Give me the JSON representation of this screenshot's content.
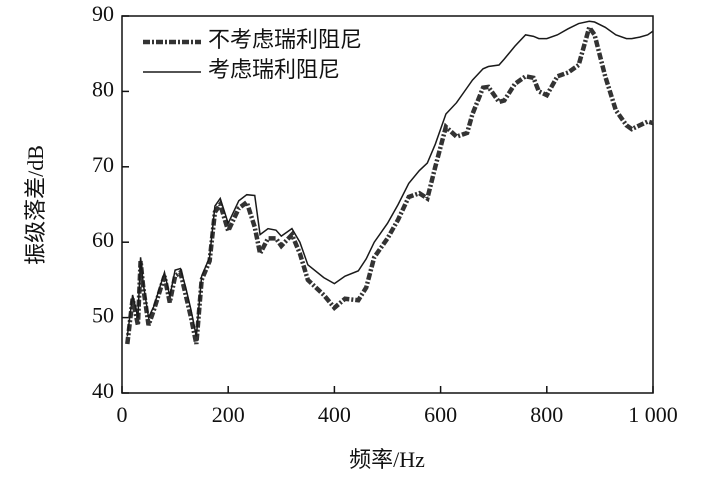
{
  "chart_data": {
    "type": "line",
    "xlabel": "频率/Hz",
    "ylabel": "振级落差/dB",
    "x": [
      10,
      20,
      30,
      35,
      40,
      50,
      60,
      80,
      90,
      100,
      110,
      120,
      130,
      140,
      150,
      165,
      175,
      185,
      200,
      220,
      235,
      250,
      260,
      275,
      290,
      300,
      320,
      335,
      350,
      380,
      400,
      420,
      445,
      460,
      475,
      500,
      520,
      540,
      560,
      575,
      590,
      610,
      630,
      650,
      660,
      680,
      690,
      710,
      720,
      740,
      760,
      775,
      785,
      800,
      820,
      840,
      860,
      880,
      890,
      910,
      930,
      950,
      960,
      975,
      990,
      1000
    ],
    "series": [
      {
        "name": "不考虑瑞利阻尼",
        "color": "#333333",
        "linestyle": "dash-dot",
        "values": [
          46.5,
          52.5,
          49,
          57.5,
          54,
          49,
          51,
          55.5,
          52,
          55.5,
          56,
          53,
          50,
          46.5,
          55,
          57.5,
          64,
          65,
          61.5,
          64.5,
          65.3,
          62,
          58.5,
          60.5,
          60.5,
          59.5,
          61,
          58.5,
          55,
          53,
          51.3,
          52.5,
          52.3,
          54,
          58,
          60.5,
          63,
          66,
          66.5,
          65.8,
          70,
          75.3,
          74,
          74.5,
          77,
          80.5,
          80.6,
          78.6,
          78.8,
          81,
          82,
          81.8,
          80,
          79.5,
          82,
          82.5,
          83.5,
          88.5,
          87.5,
          82,
          77.5,
          75.5,
          75,
          75.5,
          76,
          75.8
        ]
      },
      {
        "name": "考虑瑞利阻尼",
        "color": "#1a1a1a",
        "linestyle": "solid",
        "values": [
          47.5,
          53,
          50,
          58,
          54.5,
          50,
          51.5,
          56,
          52.8,
          56.3,
          56.5,
          54,
          51,
          47.5,
          55.5,
          58,
          64.8,
          65.8,
          62.5,
          65.5,
          66.3,
          66.2,
          61,
          61.8,
          61.6,
          60.8,
          61.8,
          60,
          57,
          55.3,
          54.5,
          55.5,
          56.2,
          57.8,
          60,
          62.5,
          65,
          67.8,
          69.5,
          70.5,
          73,
          77,
          78.5,
          80.5,
          81.5,
          83,
          83.3,
          83.5,
          84.3,
          86,
          87.5,
          87.3,
          87,
          87,
          87.5,
          88.3,
          89,
          89.3,
          89.2,
          88.5,
          87.5,
          87,
          87,
          87.2,
          87.5,
          88
        ]
      }
    ],
    "xlim": [
      0,
      1000
    ],
    "xticks": [
      0,
      200,
      400,
      600,
      800,
      {
        "value": 1000,
        "label": "1 000"
      }
    ],
    "ylim": [
      40,
      90
    ],
    "yticks": [
      40,
      50,
      60,
      70,
      80,
      90
    ],
    "legend": "upper-left"
  }
}
